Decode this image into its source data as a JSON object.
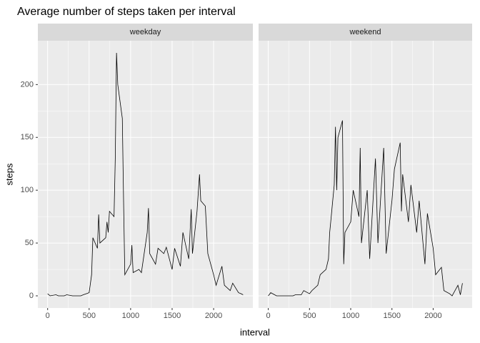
{
  "chart_data": {
    "type": "line",
    "title": "Average number of steps taken per interval",
    "x_label": "interval",
    "y_label": "steps",
    "color": "#000000",
    "grid": true,
    "xlim": [
      -117.75,
      2472.75
    ],
    "xticks": [
      0,
      500,
      1000,
      1500,
      2000
    ],
    "ylim": [
      -11.5,
      241.5
    ],
    "yticks": [
      0,
      50,
      100,
      150,
      200
    ],
    "panels": [
      {
        "name": "weekday",
        "x": [
          0,
          30,
          100,
          130,
          200,
          230,
          300,
          330,
          400,
          430,
          500,
          530,
          545,
          600,
          615,
          630,
          700,
          715,
          730,
          745,
          800,
          815,
          830,
          845,
          900,
          915,
          930,
          1000,
          1015,
          1030,
          1100,
          1130,
          1200,
          1215,
          1230,
          1300,
          1330,
          1400,
          1430,
          1500,
          1530,
          1600,
          1630,
          1700,
          1730,
          1745,
          1800,
          1830,
          1845,
          1900,
          1930,
          2000,
          2030,
          2100,
          2130,
          2200,
          2230,
          2300,
          2330,
          2355
        ],
        "values": [
          2,
          0,
          1,
          0,
          0,
          1,
          0,
          0,
          0,
          1,
          3,
          20,
          55,
          45,
          77,
          50,
          55,
          70,
          60,
          80,
          75,
          130,
          230,
          200,
          168,
          90,
          20,
          30,
          48,
          22,
          25,
          22,
          60,
          83,
          40,
          30,
          45,
          40,
          46,
          25,
          45,
          28,
          60,
          35,
          82,
          40,
          80,
          115,
          90,
          85,
          40,
          20,
          10,
          28,
          10,
          5,
          12,
          3,
          2,
          1
        ]
      },
      {
        "name": "weekend",
        "x": [
          0,
          30,
          100,
          130,
          200,
          230,
          300,
          330,
          400,
          430,
          500,
          530,
          600,
          630,
          700,
          730,
          745,
          800,
          815,
          830,
          845,
          900,
          915,
          930,
          1000,
          1030,
          1100,
          1115,
          1130,
          1200,
          1230,
          1300,
          1330,
          1400,
          1430,
          1500,
          1530,
          1600,
          1615,
          1630,
          1700,
          1730,
          1800,
          1830,
          1900,
          1930,
          2000,
          2030,
          2100,
          2130,
          2200,
          2230,
          2300,
          2330,
          2355
        ],
        "values": [
          0,
          3,
          0,
          0,
          0,
          0,
          0,
          1,
          1,
          5,
          2,
          5,
          10,
          20,
          25,
          35,
          60,
          105,
          160,
          100,
          150,
          166,
          30,
          60,
          70,
          100,
          75,
          140,
          50,
          100,
          35,
          130,
          50,
          140,
          40,
          90,
          120,
          145,
          80,
          115,
          70,
          105,
          60,
          90,
          30,
          78,
          45,
          20,
          27,
          5,
          2,
          0,
          10,
          1,
          12
        ]
      }
    ]
  }
}
